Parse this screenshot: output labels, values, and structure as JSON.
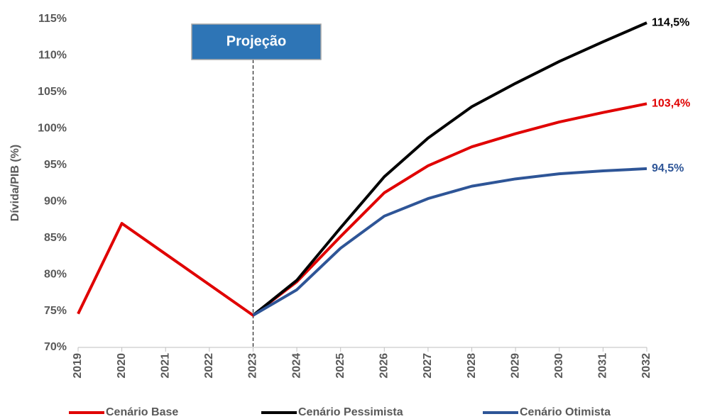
{
  "chart_data": {
    "type": "line",
    "y_label": "Dívida/PIB (%)",
    "categories": [
      "2019",
      "2020",
      "2021",
      "2022",
      "2023",
      "2024",
      "2025",
      "2026",
      "2027",
      "2028",
      "2029",
      "2030",
      "2031",
      "2032"
    ],
    "series": [
      {
        "name": "Cenário Base",
        "color": "#e00000",
        "values": [
          74.6,
          87.0,
          82.8,
          78.6,
          74.4,
          79.0,
          85.2,
          91.2,
          94.9,
          97.5,
          99.3,
          100.9,
          102.2,
          103.4
        ],
        "value_labels": [
          null,
          null,
          null,
          null,
          null,
          null,
          null,
          null,
          null,
          null,
          null,
          null,
          null,
          "103,4%"
        ]
      },
      {
        "name": "Cenário Pessimista",
        "color": "#000000",
        "values": [
          null,
          null,
          null,
          null,
          74.4,
          79.2,
          86.4,
          93.4,
          98.7,
          103.0,
          106.2,
          109.2,
          111.9,
          114.5
        ],
        "value_labels": [
          null,
          null,
          null,
          null,
          null,
          null,
          null,
          null,
          null,
          null,
          null,
          null,
          null,
          "114,5%"
        ]
      },
      {
        "name": "Cenário Otimista",
        "color": "#2e5597",
        "values": [
          null,
          null,
          null,
          null,
          74.4,
          77.9,
          83.6,
          88.0,
          90.4,
          92.1,
          93.1,
          93.8,
          94.2,
          94.5
        ],
        "value_labels": [
          null,
          null,
          null,
          null,
          null,
          null,
          null,
          null,
          null,
          null,
          null,
          null,
          null,
          "94,5%"
        ]
      }
    ],
    "annotation": {
      "text": "Projeção",
      "category": "2023"
    },
    "ylim": [
      70,
      115
    ],
    "yticks": [
      {
        "value": 70,
        "label": "70%"
      },
      {
        "value": 75,
        "label": "75%"
      },
      {
        "value": 80,
        "label": "80%"
      },
      {
        "value": 85,
        "label": "85%"
      },
      {
        "value": 90,
        "label": "90%"
      },
      {
        "value": 95,
        "label": "95%"
      },
      {
        "value": 100,
        "label": "100%"
      },
      {
        "value": 105,
        "label": "105%"
      },
      {
        "value": 110,
        "label": "110%"
      },
      {
        "value": 115,
        "label": "115%"
      }
    ],
    "grid": false,
    "legend": "bottom"
  }
}
